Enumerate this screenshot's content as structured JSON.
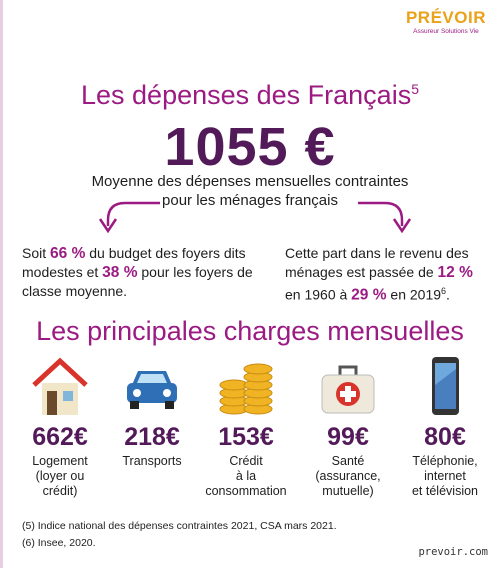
{
  "logo": {
    "brand": "PRÉVOIR",
    "tagline": "Assureur Solutions Vie"
  },
  "header": {
    "title": "Les dépenses des Français",
    "title_note": "5",
    "amount": "1055 €",
    "subtitle_lines": [
      "Moyenne des dépenses mensuelles contraintes",
      "pour les ménages français"
    ]
  },
  "left_text": {
    "parts": [
      "Soit ",
      "66 %",
      " du budget des foyers dits modestes et ",
      "38 %",
      " pour les foyers de classe moyenne."
    ]
  },
  "right_text": {
    "parts": [
      "Cette part dans le revenu des ménages est passée de ",
      "12 %",
      " en 1960 à ",
      "29 %",
      " en 2019"
    ],
    "note": "6",
    "end": "."
  },
  "section_title": "Les principales charges mensuelles",
  "items": [
    {
      "amount": "662€",
      "label_lines": [
        "Logement",
        "(loyer ou",
        "crédit)"
      ]
    },
    {
      "amount": "218€",
      "label_lines": [
        "Transports"
      ]
    },
    {
      "amount": "153€",
      "label_lines": [
        "Crédit",
        "à la",
        "consommation"
      ]
    },
    {
      "amount": "99€",
      "label_lines": [
        "Santé",
        "(assurance,",
        "mutuelle)"
      ]
    },
    {
      "amount": "80€",
      "label_lines": [
        "Téléphonie,",
        "internet",
        "et télévision"
      ]
    }
  ],
  "footnotes": [
    "(5) Indice national des dépenses contraintes 2021, CSA mars 2021.",
    "(6) Insee, 2020."
  ],
  "website": "prevoir.com"
}
